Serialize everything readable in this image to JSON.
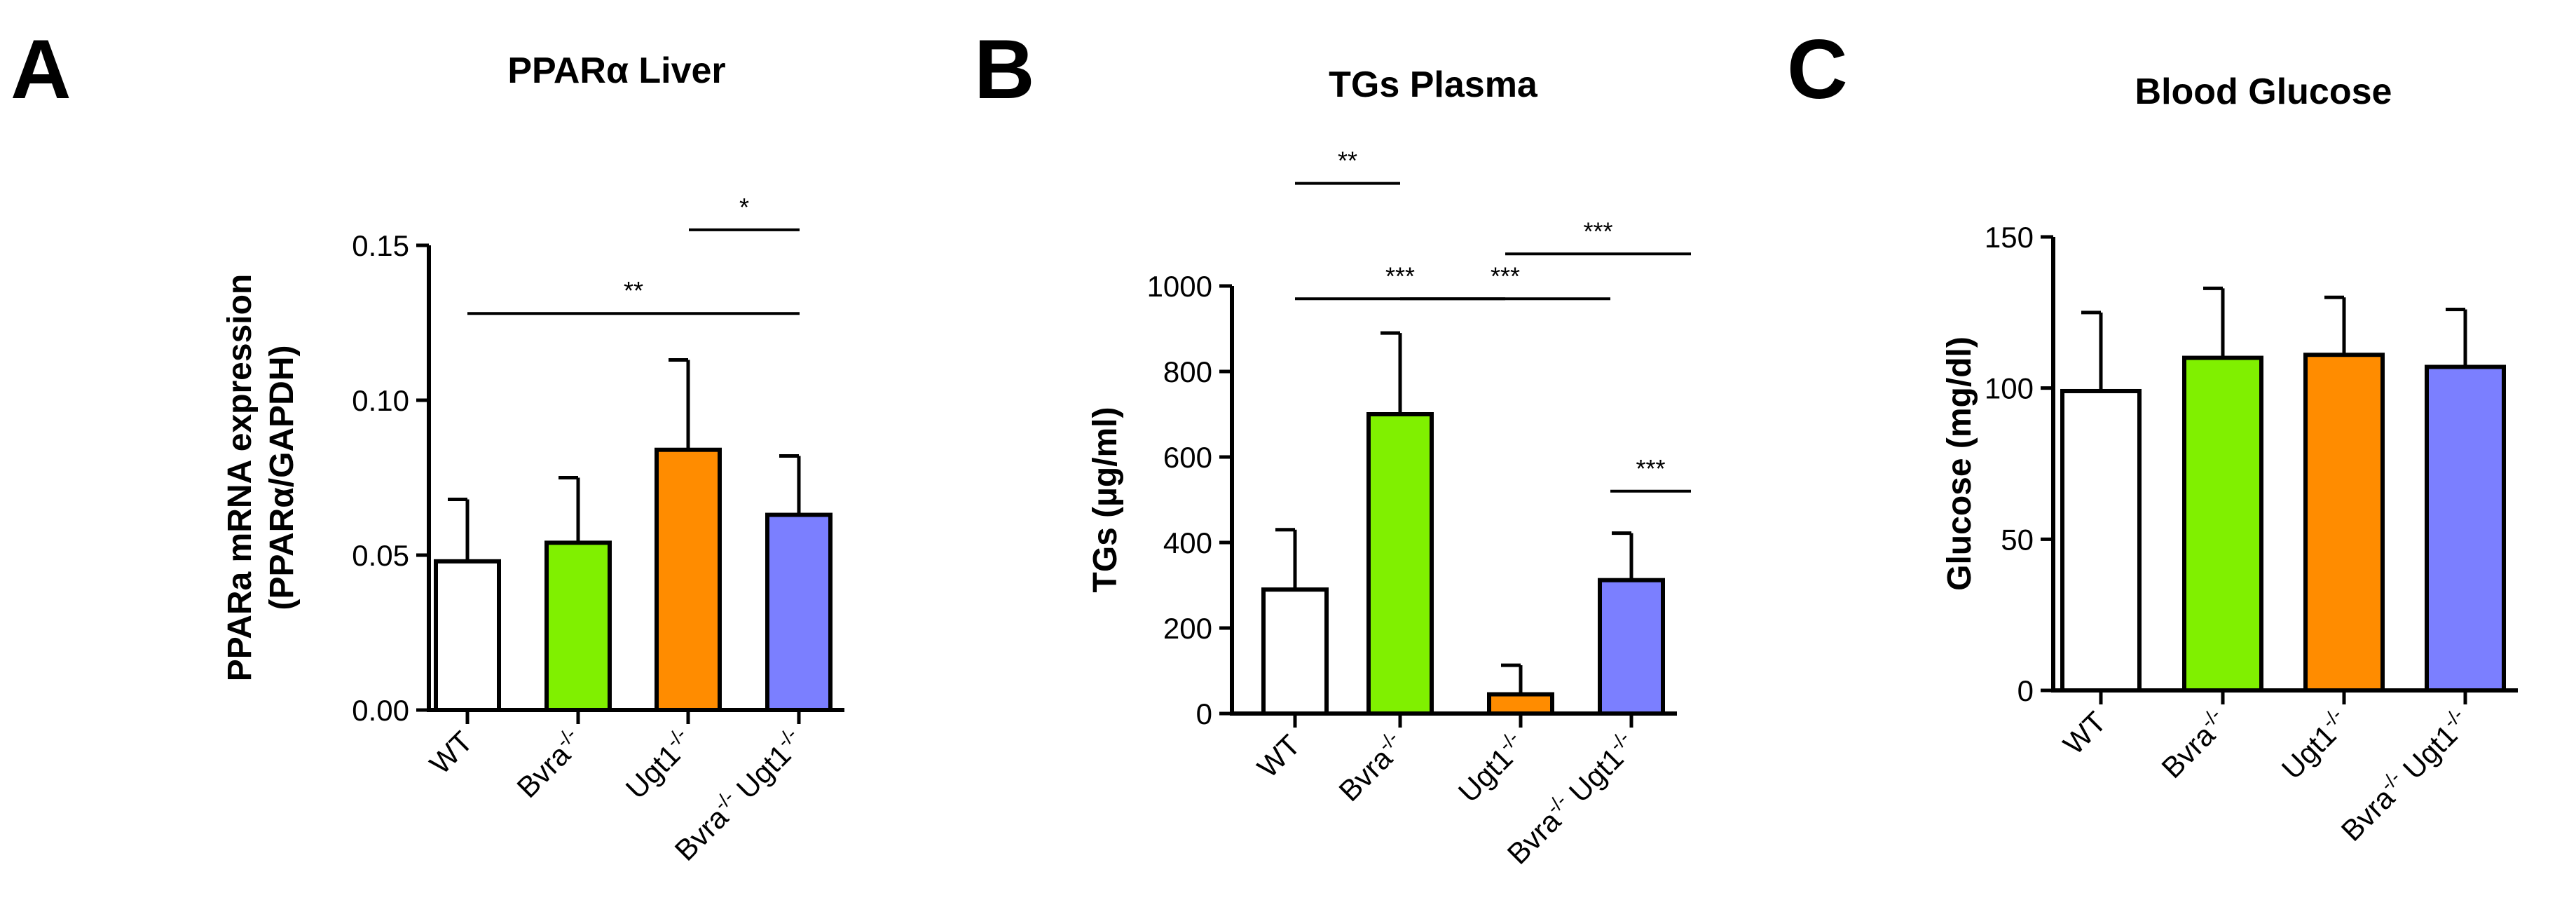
{
  "figure": {
    "panels": [
      "A",
      "B",
      "C"
    ]
  },
  "colors": {
    "WT": "#ffffff",
    "Bvra": "#80f000",
    "Ugt1": "#ff8c00",
    "Double": "#7b7fff"
  },
  "chart_data": [
    {
      "panel": "A",
      "type": "bar",
      "title": "PPARα Liver",
      "ylabel_line1": "PPARa mRNA expression",
      "ylabel_line2": "(PPARα/GAPDH)",
      "ylim": [
        0,
        0.15
      ],
      "yticks": [
        0.0,
        0.05,
        0.1,
        0.15
      ],
      "ytick_labels": [
        "0.00",
        "0.05",
        "0.10",
        "0.15"
      ],
      "categories": [
        {
          "base": "WT",
          "sup": ""
        },
        {
          "base": "Bvra",
          "sup": "-/-"
        },
        {
          "base": "Ugt1",
          "sup": "-/-"
        },
        {
          "base": "Bvra",
          "sup": "-/-",
          "base2": " Ugt1",
          "sup2": "-/-"
        }
      ],
      "values": [
        0.048,
        0.054,
        0.084,
        0.063
      ],
      "errors": [
        0.02,
        0.021,
        0.029,
        0.019
      ],
      "significance": [
        {
          "from": 2,
          "to": 3,
          "y": 0.155,
          "label": "*"
        },
        {
          "from": 0,
          "to": 3,
          "y": 0.128,
          "label": "**"
        }
      ]
    },
    {
      "panel": "B",
      "type": "bar",
      "title": "TGs Plasma",
      "ylabel_line1": "TGs (µg/ml)",
      "ylim": [
        0,
        1000
      ],
      "yticks": [
        0,
        200,
        400,
        600,
        800,
        1000
      ],
      "ytick_labels": [
        "0",
        "200",
        "400",
        "600",
        "800",
        "1000"
      ],
      "categories": [
        {
          "base": "WT",
          "sup": ""
        },
        {
          "base": "Bvra",
          "sup": "-/-"
        },
        {
          "base": "Ugt1",
          "sup": "-/-"
        },
        {
          "base": "Bvra",
          "sup": "-/-",
          "base2": " Ugt1",
          "sup2": "-/-"
        }
      ],
      "values": [
        290,
        700,
        45,
        312
      ],
      "errors": [
        140,
        190,
        68,
        110
      ],
      "significance": [
        {
          "from": 0,
          "to": 1,
          "y": 1240,
          "label": "**"
        },
        {
          "from": 0,
          "to": 2,
          "y": 970,
          "label": "***"
        },
        {
          "from": 1,
          "to": 3,
          "y": 970,
          "label": "***"
        },
        {
          "from": 2,
          "to": 4,
          "y": 1075,
          "label": "***"
        },
        {
          "from": 3,
          "to": 4,
          "y": 520,
          "label": "***"
        }
      ]
    },
    {
      "panel": "C",
      "type": "bar",
      "title": "Blood Glucose",
      "ylabel_line1": "Glucose (mg/dl)",
      "ylim": [
        0,
        150
      ],
      "yticks": [
        0,
        50,
        100,
        150
      ],
      "ytick_labels": [
        "0",
        "50",
        "100",
        "150"
      ],
      "categories": [
        {
          "base": "WT",
          "sup": ""
        },
        {
          "base": "Bvra",
          "sup": "-/-"
        },
        {
          "base": "Ugt1",
          "sup": "-/-"
        },
        {
          "base": "Bvra",
          "sup": "-/-",
          "base2": " Ugt1",
          "sup2": "-/-"
        }
      ],
      "values": [
        99,
        110,
        111,
        107
      ],
      "errors": [
        26,
        23,
        19,
        19
      ],
      "significance": []
    }
  ]
}
